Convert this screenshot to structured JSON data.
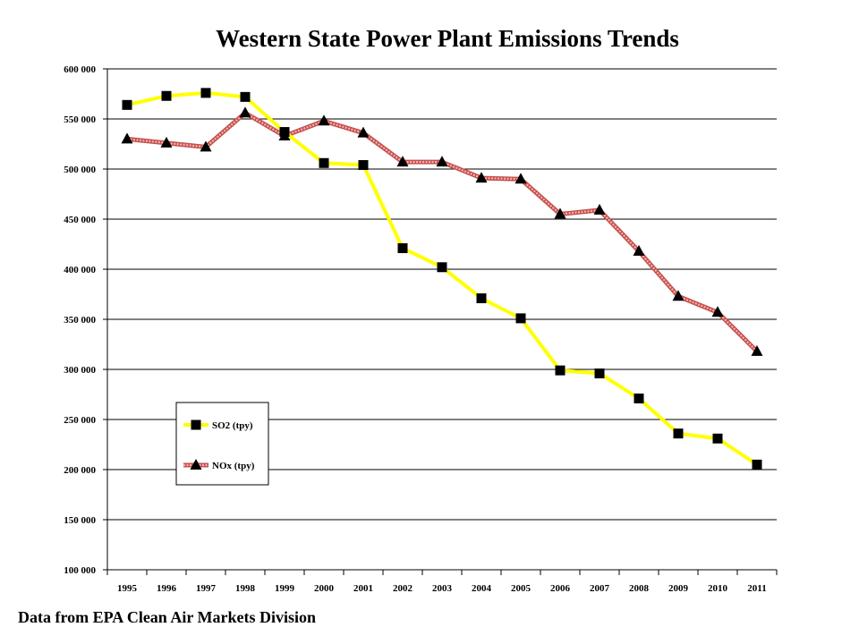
{
  "chart_data": {
    "type": "line",
    "title": "Western State Power Plant Emissions Trends",
    "xlabel": "",
    "ylabel": "",
    "x": [
      "1995",
      "1996",
      "1997",
      "1998",
      "1999",
      "2000",
      "2001",
      "2002",
      "2003",
      "2004",
      "2005",
      "2006",
      "2007",
      "2008",
      "2009",
      "2010",
      "2011"
    ],
    "y_ticks": [
      "100 000",
      "150 000",
      "200 000",
      "250 000",
      "300 000",
      "350 000",
      "400 000",
      "450 000",
      "500 000",
      "550 000",
      "600 000"
    ],
    "ylim": [
      100000,
      600000
    ],
    "grid": "horizontal",
    "legend_position": "lower-left",
    "series": [
      {
        "name": "SO2 (tpy)",
        "marker": "square",
        "line_color": "#ffff00",
        "marker_color": "#000000",
        "values": [
          564000,
          573000,
          576000,
          572000,
          537000,
          506000,
          504000,
          421000,
          402000,
          371000,
          351000,
          299000,
          296000,
          271000,
          236000,
          231000,
          205000
        ]
      },
      {
        "name": "NOx (tpy)",
        "marker": "triangle",
        "line_color": "#ff8080",
        "marker_color": "#000000",
        "values": [
          530000,
          526000,
          522000,
          556000,
          533000,
          548000,
          536000,
          507000,
          507000,
          491000,
          490000,
          455000,
          459000,
          418000,
          373000,
          357000,
          318000
        ]
      }
    ]
  },
  "footer": {
    "source": "Data from EPA Clean Air Markets Division"
  }
}
